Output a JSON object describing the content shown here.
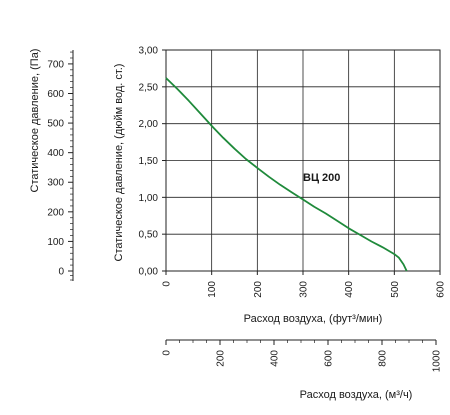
{
  "chart_data": {
    "type": "line",
    "series": [
      {
        "name": "ВЦ 200",
        "color": "#1f8a3b",
        "x": [
          0,
          25,
          50,
          75,
          100,
          125,
          150,
          175,
          200,
          225,
          250,
          275,
          300,
          325,
          350,
          375,
          400,
          425,
          450,
          475,
          500,
          510,
          520,
          527
        ],
        "y": [
          2.62,
          2.47,
          2.31,
          2.14,
          1.97,
          1.81,
          1.66,
          1.52,
          1.4,
          1.28,
          1.17,
          1.07,
          0.97,
          0.87,
          0.78,
          0.68,
          0.58,
          0.49,
          0.4,
          0.32,
          0.23,
          0.18,
          0.09,
          0.0
        ]
      }
    ],
    "primary_x_axis": {
      "label": "Расход воздуха, (фут³/мин)",
      "ticks": [
        "0",
        "100",
        "200",
        "300",
        "400",
        "500",
        "600"
      ],
      "range": [
        0,
        600
      ]
    },
    "secondary_x_axis": {
      "label": "Расход воздуха, (м³/ч)",
      "ticks": [
        "0",
        "200",
        "400",
        "600",
        "800",
        "1000"
      ],
      "range": [
        0,
        1000
      ]
    },
    "primary_y_axis": {
      "label": "Статическое давление, (дюйм вод. ст.)",
      "ticks": [
        "0,00",
        "0,50",
        "1,00",
        "1,50",
        "2,00",
        "2,50",
        "3,00"
      ],
      "range": [
        0,
        3.0
      ]
    },
    "secondary_y_axis": {
      "label": "Статическое давление, (Па)",
      "ticks": [
        "0",
        "100",
        "200",
        "300",
        "400",
        "500",
        "600",
        "700"
      ],
      "range": [
        0,
        747
      ]
    },
    "grid": true,
    "annotations": [
      {
        "text": "ВЦ 200",
        "x": 300,
        "y": 1.22
      }
    ]
  }
}
